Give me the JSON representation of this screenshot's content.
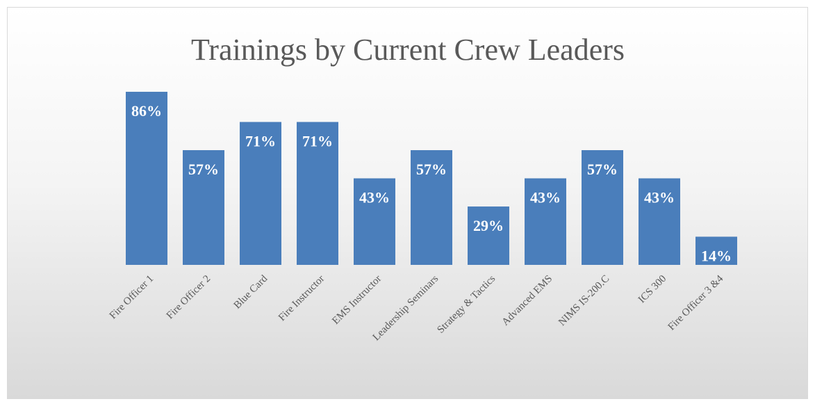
{
  "chart_data": {
    "type": "bar",
    "title": "Trainings by Current Crew Leaders",
    "categories": [
      "Fire Officer 1",
      "Fire Officer 2",
      "Blue Card",
      "Fire Instructor",
      "EMS Instructor",
      "Leadership Seminars",
      "Strategy & Tactics",
      "Advanced EMS",
      "NIMS IS-200.C",
      "ICS 300",
      "Fire Officer 3 &4"
    ],
    "values": [
      86,
      57,
      71,
      71,
      43,
      57,
      29,
      43,
      57,
      43,
      14
    ],
    "value_labels": [
      "86%",
      "57%",
      "71%",
      "71%",
      "43%",
      "57%",
      "29%",
      "43%",
      "57%",
      "43%",
      "14%"
    ],
    "color": "#4a7ebb",
    "ylim": [
      0,
      100
    ]
  }
}
